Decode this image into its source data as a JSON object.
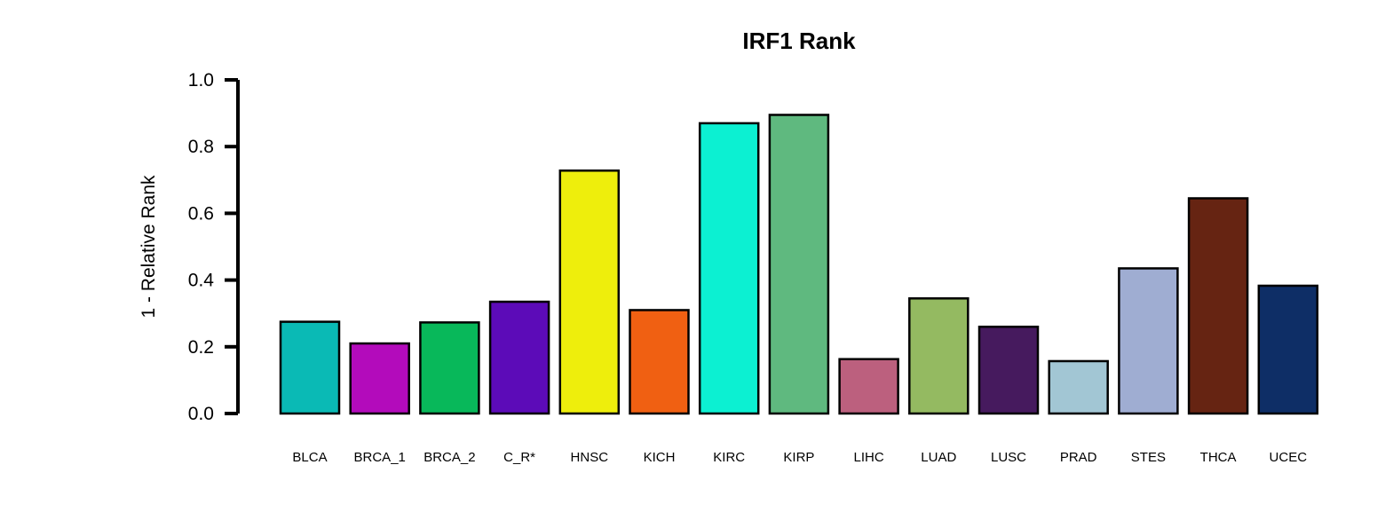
{
  "chart_data": {
    "type": "bar",
    "title": "IRF1 Rank",
    "xlabel": "",
    "ylabel": "1 - Relative Rank",
    "ylim": [
      0,
      1.0
    ],
    "yticks": [
      "0.0",
      "0.2",
      "0.4",
      "0.6",
      "0.8",
      "1.0"
    ],
    "grid": false,
    "legend": "none",
    "categories": [
      "BLCA",
      "BRCA_1",
      "BRCA_2",
      "C_R*",
      "HNSC",
      "KICH",
      "KIRC",
      "KIRP",
      "LIHC",
      "LUAD",
      "LUSC",
      "PRAD",
      "STES",
      "THCA",
      "UCEC"
    ],
    "values": [
      0.275,
      0.21,
      0.273,
      0.335,
      0.728,
      0.31,
      0.87,
      0.895,
      0.163,
      0.345,
      0.26,
      0.157,
      0.435,
      0.645,
      0.383
    ],
    "colors": [
      "#0ABAB5",
      "#B30BBB",
      "#08B85A",
      "#5C0BB8",
      "#EEEE0C",
      "#F06012",
      "#0CF0D2",
      "#5FB97F",
      "#BC607E",
      "#94BA61",
      "#461A5E",
      "#A2C6D4",
      "#9FADD2",
      "#662412",
      "#0E2E66"
    ]
  }
}
